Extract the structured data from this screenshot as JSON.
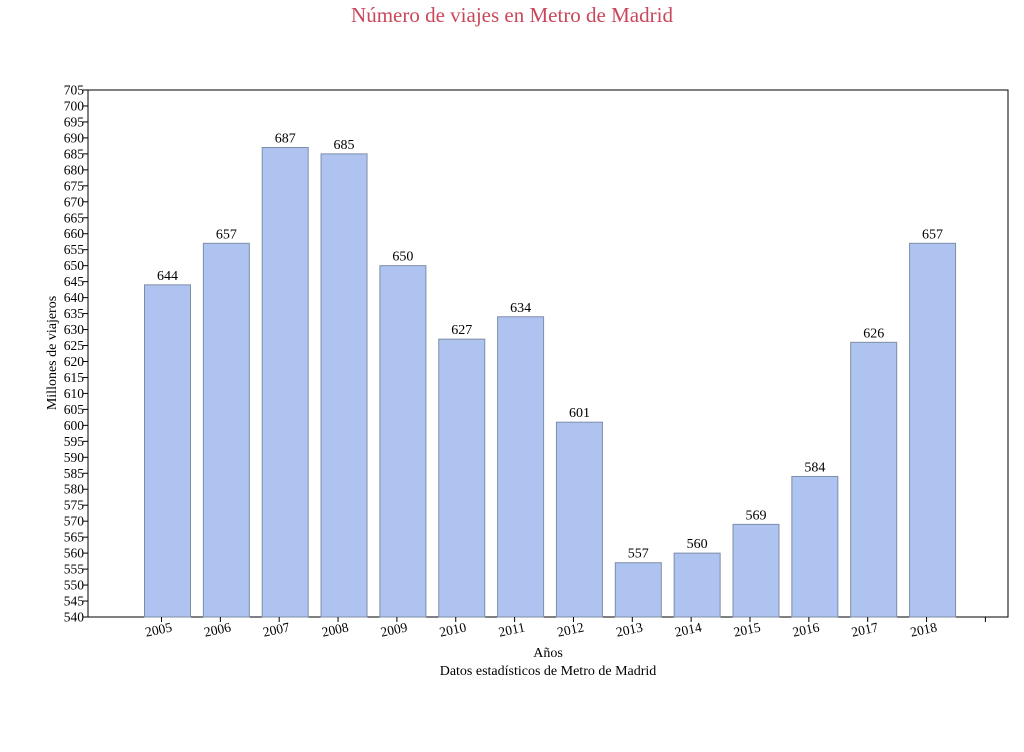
{
  "chart_data": {
    "type": "bar",
    "title": "Número de viajes en Metro de Madrid",
    "xlabel": "Años",
    "ylabel": "Millones de viajeros",
    "source_note": "Datos estadísticos de Metro de Madrid",
    "categories": [
      "2005",
      "2006",
      "2007",
      "2008",
      "2009",
      "2010",
      "2011",
      "2012",
      "2013",
      "2014",
      "2015",
      "2016",
      "2017",
      "2018"
    ],
    "values": [
      644,
      657,
      687,
      685,
      650,
      627,
      634,
      601,
      557,
      560,
      569,
      584,
      626,
      657
    ],
    "value_labels": [
      "644",
      "657",
      "687",
      "685",
      "650",
      "627",
      "634",
      "601",
      "557",
      "560",
      "569",
      "584",
      "626",
      "657"
    ],
    "ylim": [
      540,
      705
    ],
    "ytick_step": 5,
    "grid": false,
    "legend": "none",
    "colors": {
      "bar_fill": "#aec3ef",
      "bar_edge": "#7d8ea8",
      "title": "#c9475a"
    }
  }
}
